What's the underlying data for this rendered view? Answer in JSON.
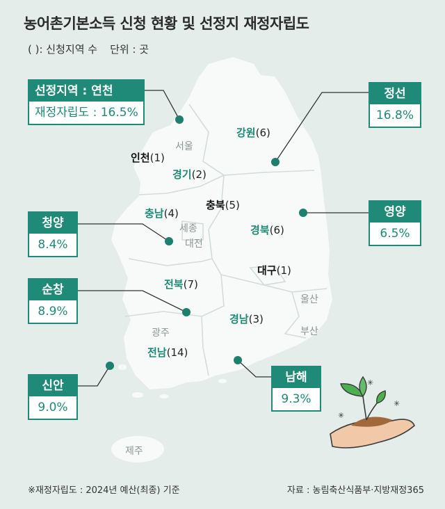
{
  "title": "농어촌기본소득 신청 현황 및 선정지 재정자립도",
  "legend": {
    "paren_note": "( ): 신청지역 수",
    "unit": "단위 : 곳"
  },
  "regions": {
    "gangwon": {
      "name": "강원",
      "count": "(6)"
    },
    "incheon": {
      "name": "인천",
      "count": "(1)"
    },
    "gyeonggi": {
      "name": "경기",
      "count": "(2)"
    },
    "chungbuk": {
      "name": "충북",
      "count": "(5)"
    },
    "chungnam": {
      "name": "충남",
      "count": "(4)"
    },
    "gyeongbuk": {
      "name": "경북",
      "count": "(6)"
    },
    "daegu": {
      "name": "대구",
      "count": "(1)"
    },
    "jeonbuk": {
      "name": "전북",
      "count": "(7)"
    },
    "gyeongnam": {
      "name": "경남",
      "count": "(3)"
    },
    "jeonnam": {
      "name": "전남",
      "count": "(14)"
    }
  },
  "cities": {
    "seoul": "서울",
    "sejong": "세종",
    "daejeon": "대전",
    "ulsan": "울산",
    "busan": "부산",
    "gwangju": "광주",
    "jeju": "제주"
  },
  "selected": {
    "yeoncheon": {
      "label": "선정지역 : 연천",
      "value": "재정자립도 : 16.5%"
    },
    "jeongseon": {
      "label": "정선",
      "value": "16.8%"
    },
    "yeongyang": {
      "label": "영양",
      "value": "6.5%"
    },
    "cheongyang": {
      "label": "청양",
      "value": "8.4%"
    },
    "sunchang": {
      "label": "순창",
      "value": "8.9%"
    },
    "sinan": {
      "label": "신안",
      "value": "9.0%"
    },
    "namhae": {
      "label": "남해",
      "value": "9.3%"
    }
  },
  "footer": {
    "note": "※재정자립도 : 2024년 예산(최종) 기준",
    "source": "자료 : 농림축산식품부·지방재정365"
  },
  "colors": {
    "accent": "#1f8a78",
    "map_fill": "#f7faf9",
    "background": "#e4ede9"
  }
}
